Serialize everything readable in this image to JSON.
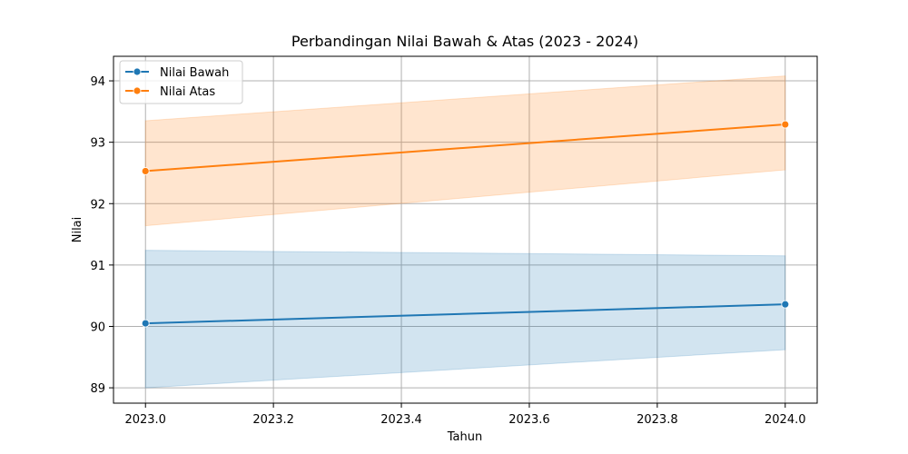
{
  "chart_data": {
    "type": "line",
    "title": "Perbandingan Nilai Bawah & Atas (2023 - 2024)",
    "xlabel": "Tahun",
    "ylabel": "Nilai",
    "xlim": [
      2022.95,
      2024.05
    ],
    "ylim": [
      88.75,
      94.4
    ],
    "xticks": [
      2023.0,
      2023.2,
      2023.4,
      2023.6,
      2023.8,
      2024.0
    ],
    "xtick_labels": [
      "2023.0",
      "2023.2",
      "2023.4",
      "2023.6",
      "2023.8",
      "2024.0"
    ],
    "yticks": [
      89,
      90,
      91,
      92,
      93,
      94
    ],
    "ytick_labels": [
      "89",
      "90",
      "91",
      "92",
      "93",
      "94"
    ],
    "grid": true,
    "legend_position": "top-left",
    "x": [
      2023,
      2024
    ],
    "series": [
      {
        "name": "Nilai Bawah",
        "color": "#1f77b4",
        "values": [
          90.05,
          90.36
        ],
        "band_lower": [
          89.0,
          89.62
        ],
        "band_upper": [
          91.24,
          91.15
        ]
      },
      {
        "name": "Nilai Atas",
        "color": "#ff7f0e",
        "values": [
          92.53,
          93.29
        ],
        "band_lower": [
          91.64,
          92.55
        ],
        "band_upper": [
          93.35,
          94.08
        ]
      }
    ]
  }
}
